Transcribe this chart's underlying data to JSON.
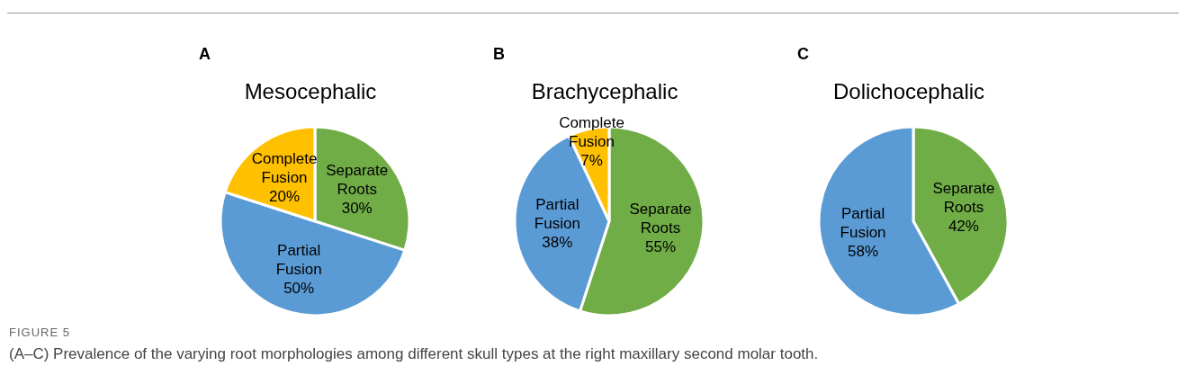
{
  "chart_data": [
    {
      "type": "pie",
      "title": "Mesocephalic",
      "annotations": [
        "A"
      ],
      "categories": [
        "Separate Roots",
        "Partial Fusion",
        "Complete Fusion"
      ],
      "values": [
        30,
        50,
        20
      ],
      "value_labels": [
        "30%",
        "50%",
        "20%"
      ],
      "colors": [
        "#70ad47",
        "#5b9bd5",
        "#ffc000"
      ]
    },
    {
      "type": "pie",
      "title": "Brachycephalic",
      "annotations": [
        "B"
      ],
      "categories": [
        "Separate Roots",
        "Partial Fusion",
        "Complete Fusion"
      ],
      "values": [
        55,
        38,
        7
      ],
      "value_labels": [
        "55%",
        "38%",
        "7%"
      ],
      "colors": [
        "#70ad47",
        "#5b9bd5",
        "#ffc000"
      ]
    },
    {
      "type": "pie",
      "title": "Dolichocephalic",
      "annotations": [
        "C",
        "FIGURE 5",
        "(A–C) Prevalence of the varying root morphologies among different skull types at the right maxillary second molar tooth."
      ],
      "categories": [
        "Separate Roots",
        "Partial Fusion"
      ],
      "values": [
        42,
        58
      ],
      "value_labels": [
        "42%",
        "58%"
      ],
      "colors": [
        "#70ad47",
        "#5b9bd5"
      ]
    }
  ]
}
